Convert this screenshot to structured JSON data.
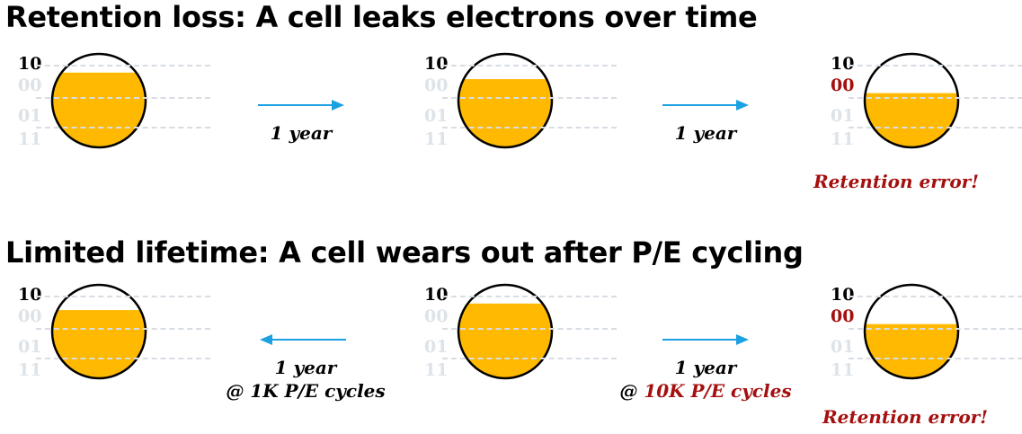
{
  "colors": {
    "fill": "#FFB900",
    "accent": "#a50f0f",
    "arrow": "#1BA1E2",
    "faded_level": "#dde3e8"
  },
  "retention": {
    "title": "Retention loss: A cell leaks electrons over time",
    "cells": [
      {
        "levels": [
          "10",
          "00",
          "01",
          "11"
        ],
        "fill_fraction": 0.8,
        "error_level": null
      },
      {
        "levels": [
          "10",
          "00",
          "01",
          "11"
        ],
        "fill_fraction": 0.73,
        "error_level": null
      },
      {
        "levels": [
          "10",
          "00",
          "01",
          "11"
        ],
        "fill_fraction": 0.58,
        "error_level": "00"
      }
    ],
    "arrows": [
      {
        "direction": "right",
        "caption": "1 year"
      },
      {
        "direction": "right",
        "caption": "1 year"
      }
    ],
    "error_label": "Retention error!"
  },
  "lifetime": {
    "title": "Limited lifetime: A cell wears out after P/E cycling",
    "cells": [
      {
        "levels": [
          "10",
          "00",
          "01",
          "11"
        ],
        "fill_fraction": 0.73,
        "error_level": null
      },
      {
        "levels": [
          "10",
          "00",
          "01",
          "11"
        ],
        "fill_fraction": 0.8,
        "error_level": null
      },
      {
        "levels": [
          "10",
          "00",
          "01",
          "11"
        ],
        "fill_fraction": 0.58,
        "error_level": "00"
      }
    ],
    "arrows": [
      {
        "direction": "left",
        "caption_line1": "1 year",
        "caption_prefix": "@ ",
        "caption_cycles": "1K P/E cycles"
      },
      {
        "direction": "right",
        "caption_line1": "1 year",
        "caption_prefix": "@ ",
        "caption_cycles": "10K P/E cycles"
      }
    ],
    "error_label": "Retention error!"
  }
}
